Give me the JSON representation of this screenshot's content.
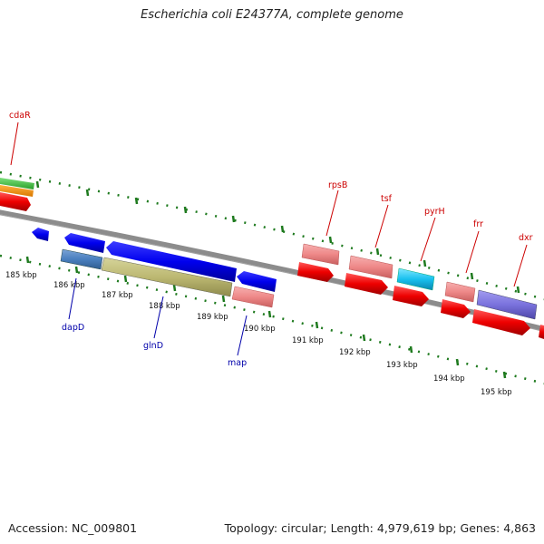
{
  "title": "Escherichia coli E24377A, complete genome",
  "footer": {
    "accession": "Accession: NC_009801",
    "topology": "Topology: circular; Length: 4,979,619 bp; Genes: 4,863"
  },
  "colors": {
    "backbone": "#8c8c8c",
    "tick": "#1e7a1e",
    "label_top": "#cc0000",
    "label_bottom": "#0000aa",
    "kbp_text": "#111111"
  },
  "scale": {
    "unit": "kbp",
    "labels": [
      "185 kbp",
      "186 kbp",
      "187 kbp",
      "188 kbp",
      "189 kbp",
      "190 kbp",
      "191 kbp",
      "192 kbp",
      "193 kbp",
      "194 kbp",
      "195 kbp"
    ]
  },
  "genes": {
    "top": [
      "cdaR",
      "rpsB",
      "tsf",
      "pyrH",
      "frr",
      "dxr"
    ],
    "bottom": [
      "dapD",
      "glnD",
      "map"
    ]
  }
}
